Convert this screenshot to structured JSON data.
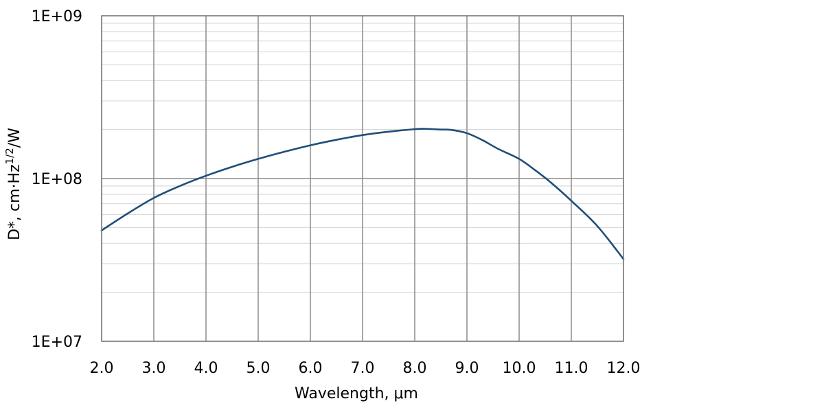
{
  "chart_data": {
    "type": "line",
    "title": "",
    "xlabel": "Wavelength, μm",
    "ylabel": {
      "prefix": "D*, cm·Hz",
      "superscript": "1/2",
      "suffix": "/W"
    },
    "xlim": [
      2.0,
      12.0
    ],
    "ylim": [
      10000000,
      1000000000
    ],
    "yscale": "log",
    "grid": true,
    "legend": "none",
    "x_ticks": [
      "2.0",
      "3.0",
      "4.0",
      "5.0",
      "6.0",
      "7.0",
      "8.0",
      "9.0",
      "10.0",
      "11.0",
      "12.0"
    ],
    "y_ticks": [
      "1E+07",
      "1E+08",
      "1E+09"
    ],
    "series": [
      {
        "color": "#1f4e79",
        "x": [
          2.0,
          2.5,
          3.0,
          3.5,
          4.0,
          4.5,
          5.0,
          5.5,
          6.0,
          6.5,
          7.0,
          7.5,
          8.0,
          8.2,
          8.5,
          8.7,
          9.0,
          9.3,
          9.6,
          10.0,
          10.3,
          10.6,
          11.0,
          11.5,
          12.0
        ],
        "y": [
          48000000,
          61000000,
          76000000,
          90000000,
          104000000,
          118000000,
          132000000,
          146000000,
          160000000,
          173000000,
          185000000,
          194000000,
          201000000,
          202000000,
          200000000,
          199000000,
          190000000,
          172000000,
          152000000,
          132000000,
          113000000,
          95000000,
          73000000,
          51000000,
          32000000
        ]
      }
    ]
  }
}
